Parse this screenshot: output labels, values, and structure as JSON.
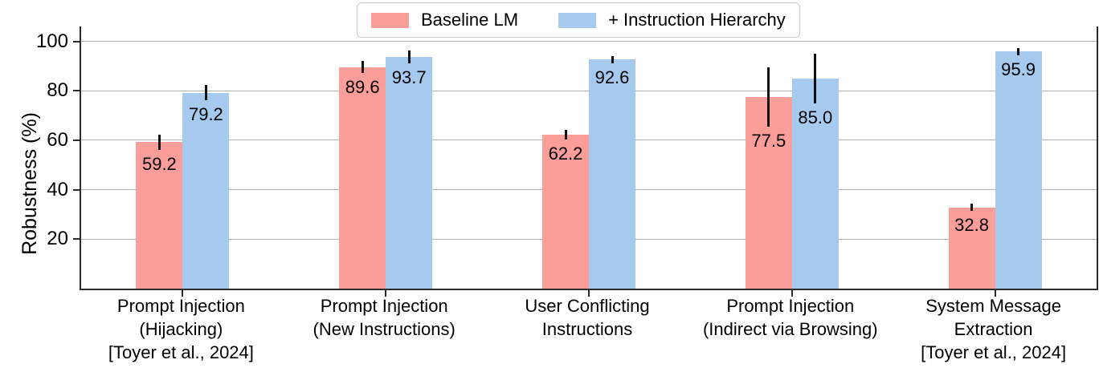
{
  "chart_data": {
    "type": "bar",
    "title": "",
    "ylabel": "Robustness (%)",
    "xlabel": "",
    "ylim": [
      0,
      106
    ],
    "yticks": [
      20,
      40,
      60,
      80,
      100
    ],
    "grid": true,
    "grid_color": "#b0b0b0",
    "legend_position": "top center",
    "categories": [
      [
        "Prompt Injection",
        "(Hijacking)",
        "[Toyer et al., 2024]"
      ],
      [
        "Prompt Injection",
        "(New Instructions)"
      ],
      [
        "User Conflicting",
        "Instructions"
      ],
      [
        "Prompt Injection",
        "(Indirect via Browsing)"
      ],
      [
        "System Message",
        "Extraction",
        "[Toyer et al., 2024]"
      ]
    ],
    "series": [
      {
        "name": "Baseline LM",
        "color": "#fb9d98",
        "values": [
          59.2,
          89.6,
          62.2,
          77.5,
          32.8
        ],
        "errors": [
          3.0,
          2.5,
          2.0,
          12.0,
          1.5
        ]
      },
      {
        "name": "+ Instruction Hierarchy",
        "color": "#a6caee",
        "values": [
          79.2,
          93.7,
          92.6,
          85.0,
          95.9
        ],
        "errors": [
          3.0,
          2.5,
          1.5,
          10.0,
          1.5
        ]
      }
    ],
    "value_label_decimals": 1,
    "error_bar_color": "#111111"
  }
}
